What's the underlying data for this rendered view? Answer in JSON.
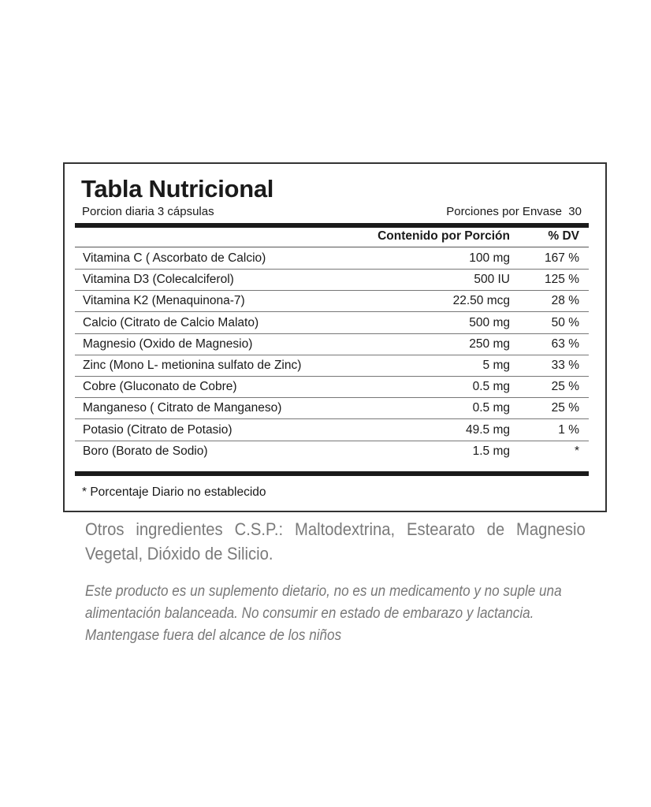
{
  "label": {
    "title": "Tabla Nutricional",
    "serving": "Porcion diaria 3 cápsulas",
    "servings_per_container": "Porciones por Envase  30",
    "headers": {
      "amount": "Contenido por Porción",
      "dv": "% DV"
    },
    "rows": [
      {
        "name": "Vitamina C ( Ascorbato de Calcio)",
        "amount": "100 mg",
        "dv": "167 %"
      },
      {
        "name": "Vitamina D3 (Colecalciferol)",
        "amount": "500 IU",
        "dv": "125 %"
      },
      {
        "name": "Vitamina K2 (Menaquinona-7)",
        "amount": "22.50 mcg",
        "dv": "28 %"
      },
      {
        "name": "Calcio (Citrato de Calcio Malato)",
        "amount": "500 mg",
        "dv": "50 %"
      },
      {
        "name": "Magnesio (Oxido de Magnesio)",
        "amount": "250 mg",
        "dv": "63 %"
      },
      {
        "name": "Zinc (Mono L- metionina sulfato de Zinc)",
        "amount": "5 mg",
        "dv": "33 %"
      },
      {
        "name": "Cobre (Gluconato de Cobre)",
        "amount": "0.5 mg",
        "dv": "25 %"
      },
      {
        "name": "Manganeso ( Citrato de  Manganeso)",
        "amount": "0.5 mg",
        "dv": "25 %"
      },
      {
        "name": "Potasio (Citrato de Potasio)",
        "amount": "49.5 mg",
        "dv": "1 %"
      },
      {
        "name": "Boro (Borato de Sodio)",
        "amount": "1.5 mg",
        "dv": "*"
      }
    ],
    "footnote": "* Porcentaje Diario no establecido"
  },
  "other_ingredients": "Otros ingredientes C.S.P.: Maltodextrina, Estearato de Magnesio Vegetal, Dióxido de Silicio.",
  "warning": "Este producto es un suplemento dietario, no es un medicamento y no suple una alimentación balanceada.  No consumir en estado de embarazo y lactancia. Mantengase fuera del alcance de los niños"
}
